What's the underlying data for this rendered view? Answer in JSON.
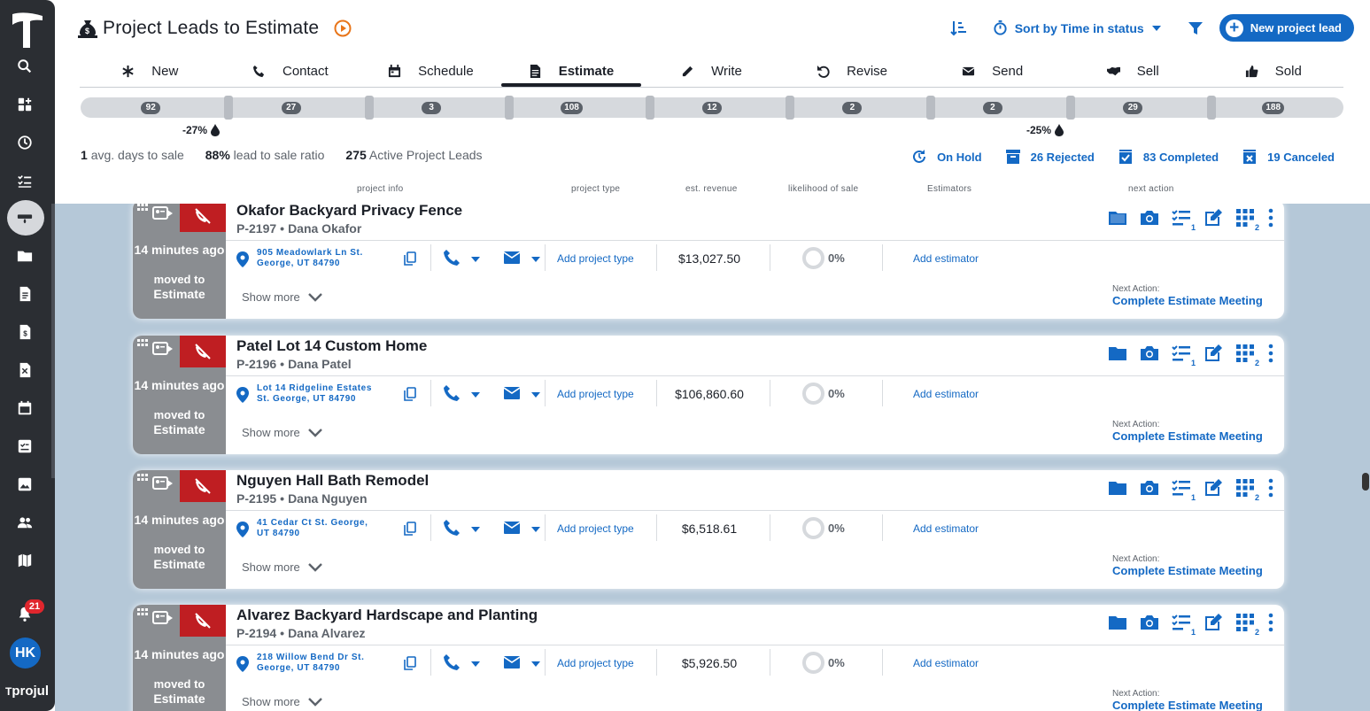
{
  "app": {
    "brand": "projul",
    "notifications_count": "21",
    "user_initials": "HK"
  },
  "header": {
    "title": "Project Leads to Estimate",
    "sort_label": "Sort by Time in status",
    "new_lead_label": "New project lead"
  },
  "tabs": [
    {
      "label": "New",
      "icon": "asterisk-icon"
    },
    {
      "label": "Contact",
      "icon": "phone-icon"
    },
    {
      "label": "Schedule",
      "icon": "calendar-icon"
    },
    {
      "label": "Estimate",
      "icon": "document-icon",
      "active": true
    },
    {
      "label": "Write",
      "icon": "pencil-icon"
    },
    {
      "label": "Revise",
      "icon": "undo-icon"
    },
    {
      "label": "Send",
      "icon": "envelope-icon"
    },
    {
      "label": "Sell",
      "icon": "handshake-icon"
    },
    {
      "label": "Sold",
      "icon": "thumbs-up-icon"
    }
  ],
  "pipeline": {
    "counts": [
      "92",
      "27",
      "3",
      "108",
      "12",
      "2",
      "2",
      "29",
      "188"
    ],
    "drop_1": "-27%",
    "drop_2": "-25%"
  },
  "stats": {
    "avg_days_value": "1",
    "avg_days_label": "avg. days to sale",
    "ratio_value": "88%",
    "ratio_label": "lead to sale ratio",
    "active_value": "275",
    "active_label": "Active Project Leads"
  },
  "status_links": {
    "on_hold": "On Hold",
    "rejected": "26 Rejected",
    "completed": "83 Completed",
    "canceled": "19 Canceled"
  },
  "columns": {
    "project_info": "project info",
    "project_type": "project type",
    "est_revenue": "est. revenue",
    "likelihood": "likelihood of sale",
    "estimators": "Estimators",
    "next_action": "next action"
  },
  "card_common": {
    "time": "14 minutes ago",
    "moved_to": "moved to",
    "stage": "Estimate",
    "add_project_type": "Add project type",
    "add_estimator": "Add estimator",
    "show_more": "Show more",
    "next_action_label": "Next Action:",
    "next_action_value": "Complete Estimate Meeting",
    "likelihood": "0%",
    "checklist_count": "1",
    "grid_count": "2"
  },
  "leads": [
    {
      "name": "Okafor Backyard Privacy Fence",
      "id": "P-2197",
      "contact": "Dana Okafor",
      "address": "905 Meadowlark Ln St. George, UT 84790",
      "revenue": "$13,027.50"
    },
    {
      "name": "Patel Lot 14 Custom Home",
      "id": "P-2196",
      "contact": "Dana Patel",
      "address": "Lot 14 Ridgeline Estates St. George, UT 84790",
      "revenue": "$106,860.60"
    },
    {
      "name": "Nguyen Hall Bath Remodel",
      "id": "P-2195",
      "contact": "Dana Nguyen",
      "address": "41 Cedar Ct St. George, UT 84790",
      "revenue": "$6,518.61"
    },
    {
      "name": "Alvarez Backyard Hardscape and Planting",
      "id": "P-2194",
      "contact": "Dana Alvarez",
      "address": "218 Willow Bend Dr St. George, UT 84790",
      "revenue": "$5,926.50"
    }
  ],
  "colors": {
    "accent": "#1469c4",
    "rail": "#2b2e33",
    "alert": "#bf1e22",
    "list_bg": "#b5c8d8"
  }
}
